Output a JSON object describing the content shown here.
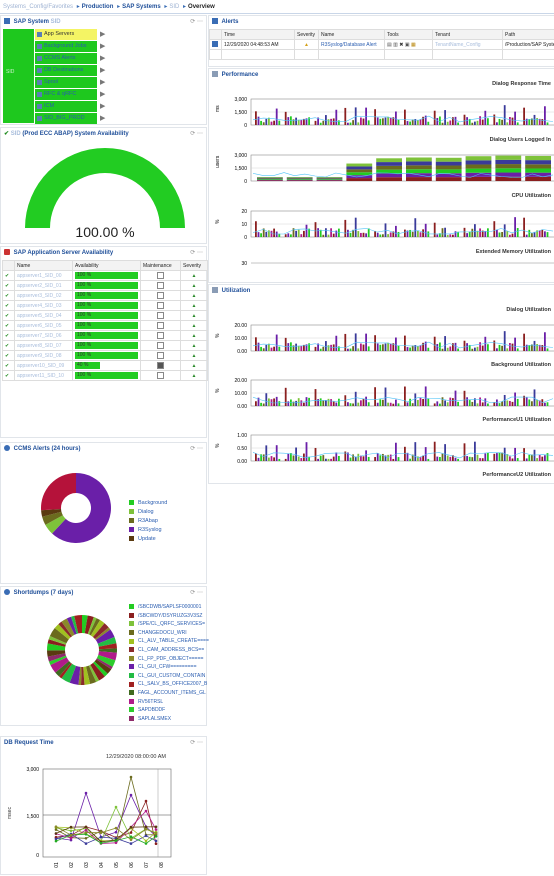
{
  "breadcrumb": {
    "root": "Systems_Config/Favorites",
    "items": [
      "Production",
      "SAP Systems",
      "SID",
      "Overview"
    ]
  },
  "sap_system": {
    "title": "SAP System",
    "title_blur": "SID",
    "left_label": "SID",
    "items": [
      {
        "label": "App Servers",
        "color": "#f4f464",
        "text_color": "#333"
      },
      {
        "label": "Background Jobs",
        "color": "#1ec81e",
        "text_color": "#2a5db0"
      },
      {
        "label": "CCMS Alerts",
        "color": "#1ec81e",
        "text_color": "#2a5db0"
      },
      {
        "label": "DB Destinations",
        "color": "#1ec81e",
        "text_color": "#2a5db0"
      },
      {
        "label": "Spool",
        "color": "#1ec81e",
        "text_color": "#2a5db0"
      },
      {
        "label": "RFC & qRFC",
        "color": "#1ec81e",
        "text_color": "#2a5db0"
      },
      {
        "label": "ICM",
        "color": "#1ec81e",
        "text_color": "#2a5db0"
      },
      {
        "label": "SID_BIG_PROD",
        "color": "#1ec81e",
        "text_color": "#2a5db0"
      }
    ]
  },
  "availability": {
    "title_blur": "SID",
    "title": "(Prod ECC ABAP) System Availability",
    "value_text": "100.00 %",
    "fraction": 1.0,
    "color": "#22cc22"
  },
  "app_server": {
    "title": "SAP Application Server Availability",
    "columns": [
      "Name",
      "Availability",
      "Maintenance",
      "Severity"
    ],
    "rows": [
      {
        "name": "appserver1_SID_00",
        "avail": "100 %",
        "fraction": 1.0,
        "maint": false
      },
      {
        "name": "appserver2_SID_01",
        "avail": "100 %",
        "fraction": 1.0,
        "maint": false
      },
      {
        "name": "appserver3_SID_02",
        "avail": "100 %",
        "fraction": 1.0,
        "maint": false
      },
      {
        "name": "appserver4_SID_03",
        "avail": "100 %",
        "fraction": 1.0,
        "maint": false
      },
      {
        "name": "appserver5_SID_04",
        "avail": "100 %",
        "fraction": 1.0,
        "maint": false
      },
      {
        "name": "appserver6_SID_05",
        "avail": "100 %",
        "fraction": 1.0,
        "maint": false
      },
      {
        "name": "appserver7_SID_06",
        "avail": "100 %",
        "fraction": 1.0,
        "maint": false
      },
      {
        "name": "appserver8_SID_07",
        "avail": "100 %",
        "fraction": 1.0,
        "maint": false
      },
      {
        "name": "appserver9_SID_08",
        "avail": "100 %",
        "fraction": 1.0,
        "maint": false
      },
      {
        "name": "appserver10_SID_09",
        "avail": "40 %",
        "fraction": 0.4,
        "maint": true
      },
      {
        "name": "appserver11_SID_10",
        "avail": "100 %",
        "fraction": 1.0,
        "maint": false
      }
    ]
  },
  "ccms": {
    "title": "CCMS Alerts (24 hours)",
    "legend": [
      {
        "label": "Background",
        "color": "#22cc22"
      },
      {
        "label": "Dialog",
        "color": "#7ec23a"
      },
      {
        "label": "R3Abap",
        "color": "#6b6b1e"
      },
      {
        "label": "R3Syslog",
        "color": "#6a1fa8"
      },
      {
        "label": "Update",
        "color": "#5a3a10"
      }
    ]
  },
  "shortdumps": {
    "title": "Shortdumps (7 days)",
    "legend": [
      {
        "label": "/SBCDWB/SAPLSF0000001",
        "color": "#22cc22"
      },
      {
        "label": "/SBCWDY/DSYRUZG3V3SZ",
        "color": "#8a1f1f"
      },
      {
        "label": "/SPE/CL_QRFC_SERVICES=",
        "color": "#7ec23a"
      },
      {
        "label": "CHANGEDOCU_WRI",
        "color": "#6b6b1e"
      },
      {
        "label": "CL_ALV_TABLE_CREATE====",
        "color": "#a0c020"
      },
      {
        "label": "CL_CAM_ADDRESS_BCS==",
        "color": "#8a2a2a"
      },
      {
        "label": "CL_FP_PDF_OBJECT=====",
        "color": "#8a8a2a"
      },
      {
        "label": "CL_GUI_CFW=========",
        "color": "#6a1fa8"
      },
      {
        "label": "CL_GUI_CUSTOM_CONTAIN",
        "color": "#22bb44"
      },
      {
        "label": "CL_SALV_BS_OFFICE2007_B",
        "color": "#a02020"
      },
      {
        "label": "FAGL_ACCOUNT_ITEMS_GL",
        "color": "#3f6a1f"
      },
      {
        "label": "RV56TRSL",
        "color": "#b01a8a"
      },
      {
        "label": "SAPDBDDF",
        "color": "#2ccc2c"
      },
      {
        "label": "SAPLALSMEX",
        "color": "#8e2a6a"
      }
    ]
  },
  "db_request": {
    "title": "DB Request Time",
    "date_label": "12/29/2020 08:00:00 AM",
    "ylabel": "msec",
    "y_ticks": [
      "3,000",
      "1,500",
      "0"
    ],
    "x_ticks": [
      "01",
      "02",
      "03",
      "04",
      "05",
      "06",
      "07",
      "08"
    ]
  },
  "alerts": {
    "title": "Alerts",
    "columns": [
      "",
      "Time",
      "Severity",
      "Name",
      "Tools",
      "Tenant",
      "Path"
    ],
    "row": {
      "time": "12/29/2020 04:48:53 AM",
      "name": "R3Syslog/Database Alert",
      "tenant": "TenantName_Config",
      "path": "/Production/SAP Syste"
    }
  },
  "performance": {
    "title": "Performance",
    "charts": [
      {
        "title": "Dialog Response Time",
        "ylabel": "ms",
        "ticks": [
          "3,000",
          "1,500",
          "0"
        ]
      },
      {
        "title": "Dialog Users Logged In",
        "ylabel": "users",
        "ticks": [
          "3,000",
          "1,500",
          "0"
        ]
      },
      {
        "title": "CPU Utilization",
        "ylabel": "%",
        "ticks": [
          "20",
          "10",
          "0"
        ]
      },
      {
        "title": "Extended Memory Utilization",
        "ylabel": "",
        "ticks": [
          "30"
        ]
      }
    ]
  },
  "utilization": {
    "title": "Utilization",
    "charts": [
      {
        "title": "Dialog Utilization",
        "ylabel": "%",
        "ticks": [
          "20.00",
          "10.00",
          "0.00"
        ]
      },
      {
        "title": "Background Utilization",
        "ylabel": "%",
        "ticks": [
          "20.00",
          "10.00",
          "0.00"
        ]
      },
      {
        "title": "PerformanceU1 Utilization",
        "ylabel": "%",
        "ticks": [
          "1.00",
          "0.50",
          "0.00"
        ]
      },
      {
        "title": "PerformanceU2 Utilization",
        "ylabel": "",
        "ticks": []
      }
    ]
  }
}
